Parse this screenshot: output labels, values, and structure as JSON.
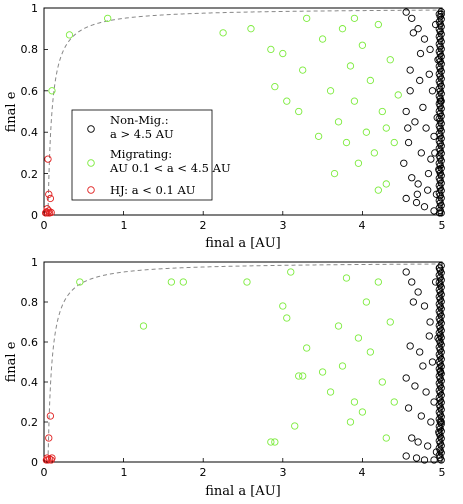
{
  "chart_data": [
    {
      "type": "scatter",
      "xlabel": "final a [AU]",
      "ylabel": "final e",
      "xlim": [
        0,
        5
      ],
      "ylim": [
        0,
        1
      ],
      "xticks": [
        "0",
        "1",
        "2",
        "3",
        "4",
        "5"
      ],
      "yticks": [
        "0",
        "0.2",
        "0.4",
        "0.6",
        "0.8",
        "1"
      ],
      "reference_curve": {
        "style": "dashed",
        "color": "#888888",
        "formula": "e = 1 - 0.05 / a"
      },
      "legend": {
        "placement": "left",
        "entries": [
          {
            "line1": "Non-Mig.:",
            "line2": "a > 4.5 AU",
            "color": "#000000"
          },
          {
            "line1": "Migrating:",
            "line2": "AU 0.1 < a < 4.5 AU",
            "color": "#7CEB3C"
          },
          {
            "line1": "HJ: a < 0.1 AU",
            "line2": "",
            "color": "#E02020"
          }
        ]
      },
      "series": [
        {
          "name": "Non-Mig.: a > 4.5 AU",
          "color": "#000000",
          "points": [
            [
              4.55,
              0.98
            ],
            [
              4.62,
              0.95
            ],
            [
              4.7,
              0.9
            ],
            [
              4.78,
              0.85
            ],
            [
              4.85,
              0.8
            ],
            [
              4.92,
              0.92
            ],
            [
              4.95,
              0.75
            ],
            [
              4.6,
              0.7
            ],
            [
              4.72,
              0.65
            ],
            [
              4.88,
              0.6
            ],
            [
              4.98,
              0.55
            ],
            [
              4.55,
              0.5
            ],
            [
              4.66,
              0.45
            ],
            [
              4.8,
              0.42
            ],
            [
              4.9,
              0.38
            ],
            [
              4.58,
              0.35
            ],
            [
              4.74,
              0.3
            ],
            [
              4.86,
              0.27
            ],
            [
              4.96,
              0.22
            ],
            [
              4.62,
              0.18
            ],
            [
              4.7,
              0.15
            ],
            [
              4.82,
              0.12
            ],
            [
              4.93,
              0.1
            ],
            [
              4.55,
              0.08
            ],
            [
              4.68,
              0.06
            ],
            [
              4.78,
              0.04
            ],
            [
              4.9,
              0.02
            ],
            [
              4.97,
              0.01
            ],
            [
              4.64,
              0.88
            ],
            [
              4.84,
              0.68
            ],
            [
              4.76,
              0.52
            ],
            [
              4.52,
              0.25
            ],
            [
              4.99,
              0.97
            ],
            [
              4.94,
              0.47
            ],
            [
              4.6,
              0.6
            ],
            [
              4.83,
              0.2
            ],
            [
              4.73,
              0.78
            ],
            [
              4.57,
              0.42
            ],
            [
              4.91,
              0.3
            ],
            [
              4.69,
              0.1
            ]
          ]
        },
        {
          "name": "Migrating: AU 0.1 < a < 4.5 AU",
          "color": "#7CEB3C",
          "points": [
            [
              0.1,
              0.6
            ],
            [
              0.32,
              0.87
            ],
            [
              0.8,
              0.95
            ],
            [
              2.25,
              0.88
            ],
            [
              2.6,
              0.9
            ],
            [
              2.85,
              0.8
            ],
            [
              2.9,
              0.62
            ],
            [
              3.0,
              0.78
            ],
            [
              3.05,
              0.55
            ],
            [
              3.2,
              0.5
            ],
            [
              3.25,
              0.7
            ],
            [
              3.3,
              0.95
            ],
            [
              3.5,
              0.85
            ],
            [
              3.6,
              0.6
            ],
            [
              3.7,
              0.45
            ],
            [
              3.75,
              0.9
            ],
            [
              3.8,
              0.35
            ],
            [
              3.85,
              0.72
            ],
            [
              3.9,
              0.55
            ],
            [
              3.95,
              0.25
            ],
            [
              4.0,
              0.82
            ],
            [
              4.05,
              0.4
            ],
            [
              4.1,
              0.65
            ],
            [
              4.15,
              0.3
            ],
            [
              4.2,
              0.92
            ],
            [
              4.25,
              0.5
            ],
            [
              4.3,
              0.15
            ],
            [
              4.35,
              0.75
            ],
            [
              4.4,
              0.35
            ],
            [
              4.45,
              0.58
            ],
            [
              3.65,
              0.2
            ],
            [
              3.45,
              0.38
            ],
            [
              4.2,
              0.12
            ],
            [
              3.9,
              0.95
            ],
            [
              4.3,
              0.42
            ]
          ]
        },
        {
          "name": "HJ: a < 0.1 AU",
          "color": "#E02020",
          "points": [
            [
              0.05,
              0.27
            ],
            [
              0.06,
              0.1
            ],
            [
              0.08,
              0.08
            ],
            [
              0.04,
              0.03
            ],
            [
              0.03,
              0.015
            ],
            [
              0.05,
              0.01
            ],
            [
              0.07,
              0.01
            ],
            [
              0.09,
              0.012
            ],
            [
              0.02,
              0.01
            ],
            [
              0.06,
              0.02
            ]
          ]
        }
      ]
    },
    {
      "type": "scatter",
      "xlabel": "final a [AU]",
      "ylabel": "final e",
      "xlim": [
        0,
        5
      ],
      "ylim": [
        0,
        1
      ],
      "xticks": [
        "0",
        "1",
        "2",
        "3",
        "4",
        "5"
      ],
      "yticks": [
        "0",
        "0.2",
        "0.4",
        "0.6",
        "0.8",
        "1"
      ],
      "reference_curve": {
        "style": "dashed",
        "color": "#888888",
        "formula": "e = 1 - 0.05 / a"
      },
      "series": [
        {
          "name": "Non-Mig.: a > 4.5 AU",
          "color": "#000000",
          "points": [
            [
              4.55,
              0.95
            ],
            [
              4.62,
              0.9
            ],
            [
              4.7,
              0.85
            ],
            [
              4.78,
              0.78
            ],
            [
              4.85,
              0.7
            ],
            [
              4.92,
              0.9
            ],
            [
              4.95,
              0.62
            ],
            [
              4.6,
              0.58
            ],
            [
              4.72,
              0.55
            ],
            [
              4.88,
              0.5
            ],
            [
              4.98,
              0.45
            ],
            [
              4.55,
              0.42
            ],
            [
              4.66,
              0.38
            ],
            [
              4.8,
              0.35
            ],
            [
              4.9,
              0.3
            ],
            [
              4.58,
              0.27
            ],
            [
              4.74,
              0.23
            ],
            [
              4.86,
              0.2
            ],
            [
              4.96,
              0.15
            ],
            [
              4.62,
              0.12
            ],
            [
              4.7,
              0.1
            ],
            [
              4.82,
              0.08
            ],
            [
              4.93,
              0.05
            ],
            [
              4.55,
              0.03
            ],
            [
              4.68,
              0.02
            ],
            [
              4.78,
              0.01
            ],
            [
              4.9,
              0.01
            ],
            [
              4.97,
              0.97
            ],
            [
              4.64,
              0.8
            ],
            [
              4.84,
              0.63
            ],
            [
              4.76,
              0.48
            ],
            [
              4.99,
              0.2
            ]
          ]
        },
        {
          "name": "Migrating: AU 0.1 < a < 4.5 AU",
          "color": "#7CEB3C",
          "points": [
            [
              0.45,
              0.9
            ],
            [
              1.25,
              0.68
            ],
            [
              1.6,
              0.9
            ],
            [
              1.75,
              0.9
            ],
            [
              2.55,
              0.9
            ],
            [
              2.85,
              0.1
            ],
            [
              2.9,
              0.1
            ],
            [
              3.0,
              0.78
            ],
            [
              3.05,
              0.72
            ],
            [
              3.1,
              0.95
            ],
            [
              3.15,
              0.18
            ],
            [
              3.2,
              0.43
            ],
            [
              3.25,
              0.43
            ],
            [
              3.3,
              0.57
            ],
            [
              3.5,
              0.45
            ],
            [
              3.6,
              0.35
            ],
            [
              3.7,
              0.68
            ],
            [
              3.75,
              0.48
            ],
            [
              3.8,
              0.92
            ],
            [
              3.85,
              0.2
            ],
            [
              3.9,
              0.3
            ],
            [
              3.95,
              0.62
            ],
            [
              4.0,
              0.25
            ],
            [
              4.05,
              0.8
            ],
            [
              4.1,
              0.55
            ],
            [
              4.2,
              0.9
            ],
            [
              4.25,
              0.4
            ],
            [
              4.3,
              0.12
            ],
            [
              4.35,
              0.7
            ],
            [
              4.4,
              0.3
            ]
          ]
        },
        {
          "name": "HJ: a < 0.1 AU",
          "color": "#E02020",
          "points": [
            [
              0.08,
              0.23
            ],
            [
              0.06,
              0.12
            ],
            [
              0.04,
              0.02
            ],
            [
              0.07,
              0.015
            ],
            [
              0.03,
              0.01
            ],
            [
              0.05,
              0.01
            ],
            [
              0.09,
              0.01
            ],
            [
              0.1,
              0.02
            ]
          ]
        }
      ]
    }
  ]
}
